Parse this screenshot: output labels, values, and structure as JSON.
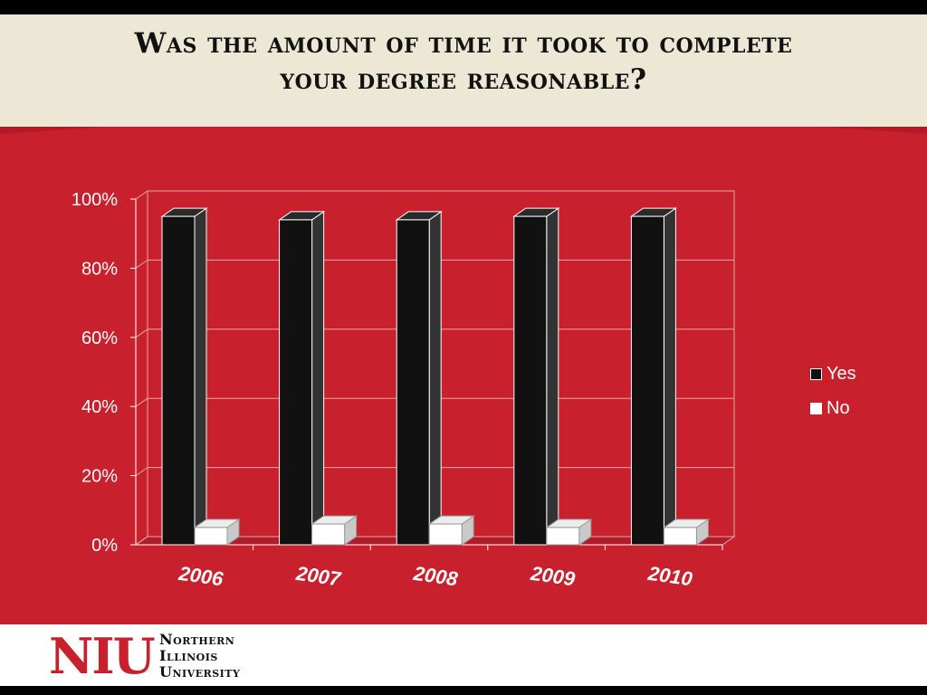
{
  "slide": {
    "title_line1": "Was the amount of time it took to complete",
    "title_line2": "your degree reasonable?"
  },
  "logo": {
    "mark": "NIU",
    "line1": "Northern",
    "line2": "Illinois",
    "line3": "University"
  },
  "colors": {
    "background_red": "#c8202c",
    "yes_series": "#111111",
    "no_series": "#ffffff"
  },
  "chart_data": {
    "type": "bar",
    "categories": [
      "2006",
      "2007",
      "2008",
      "2009",
      "2010"
    ],
    "series": [
      {
        "name": "Yes",
        "values": [
          95,
          94,
          94,
          95,
          95
        ]
      },
      {
        "name": "No",
        "values": [
          5,
          6,
          6,
          5,
          5
        ]
      }
    ],
    "ylim": [
      0,
      100
    ],
    "yticks": [
      "0%",
      "20%",
      "40%",
      "60%",
      "80%",
      "100%"
    ],
    "grid": true,
    "legend_position": "right",
    "style": "3d-column"
  }
}
